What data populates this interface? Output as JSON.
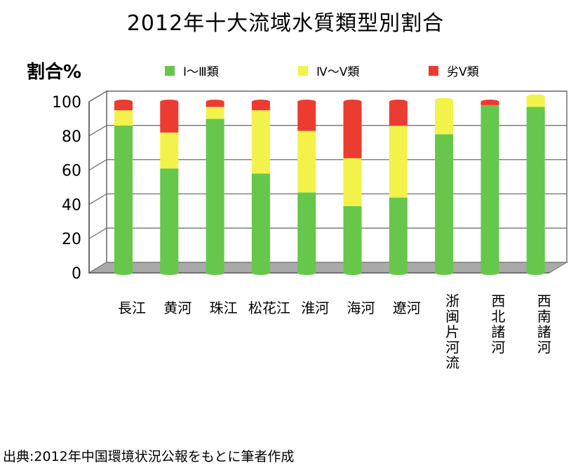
{
  "title": "2012年十大流域水質類型別割合",
  "source": "出典:2012年中国環境状況公報をもとに筆者作成",
  "chart_data": {
    "type": "bar",
    "stacked": true,
    "ylabel": "割合%",
    "ylim": [
      0,
      100
    ],
    "yticks": [
      "0",
      "20",
      "40",
      "60",
      "80",
      "100"
    ],
    "grid": true,
    "legend_position": "top",
    "categories": [
      "長江",
      "黄河",
      "珠江",
      "松花江",
      "淮河",
      "海河",
      "遼河",
      "浙闽片河流",
      "西北諸河",
      "西南諸河"
    ],
    "series": [
      {
        "name": "Ⅰ～Ⅲ類",
        "color": "#66c74a",
        "values": [
          86,
          61,
          90,
          58,
          47,
          39,
          44,
          81,
          98,
          97
        ]
      },
      {
        "name": "Ⅳ～Ⅴ類",
        "color": "#f2f24a",
        "values": [
          9,
          21,
          7,
          37,
          36,
          28,
          42,
          20,
          0,
          6
        ]
      },
      {
        "name": "劣Ⅴ類",
        "color": "#ec3b30",
        "values": [
          5,
          18,
          3,
          5,
          17,
          33,
          14,
          0,
          2,
          0
        ]
      }
    ]
  }
}
